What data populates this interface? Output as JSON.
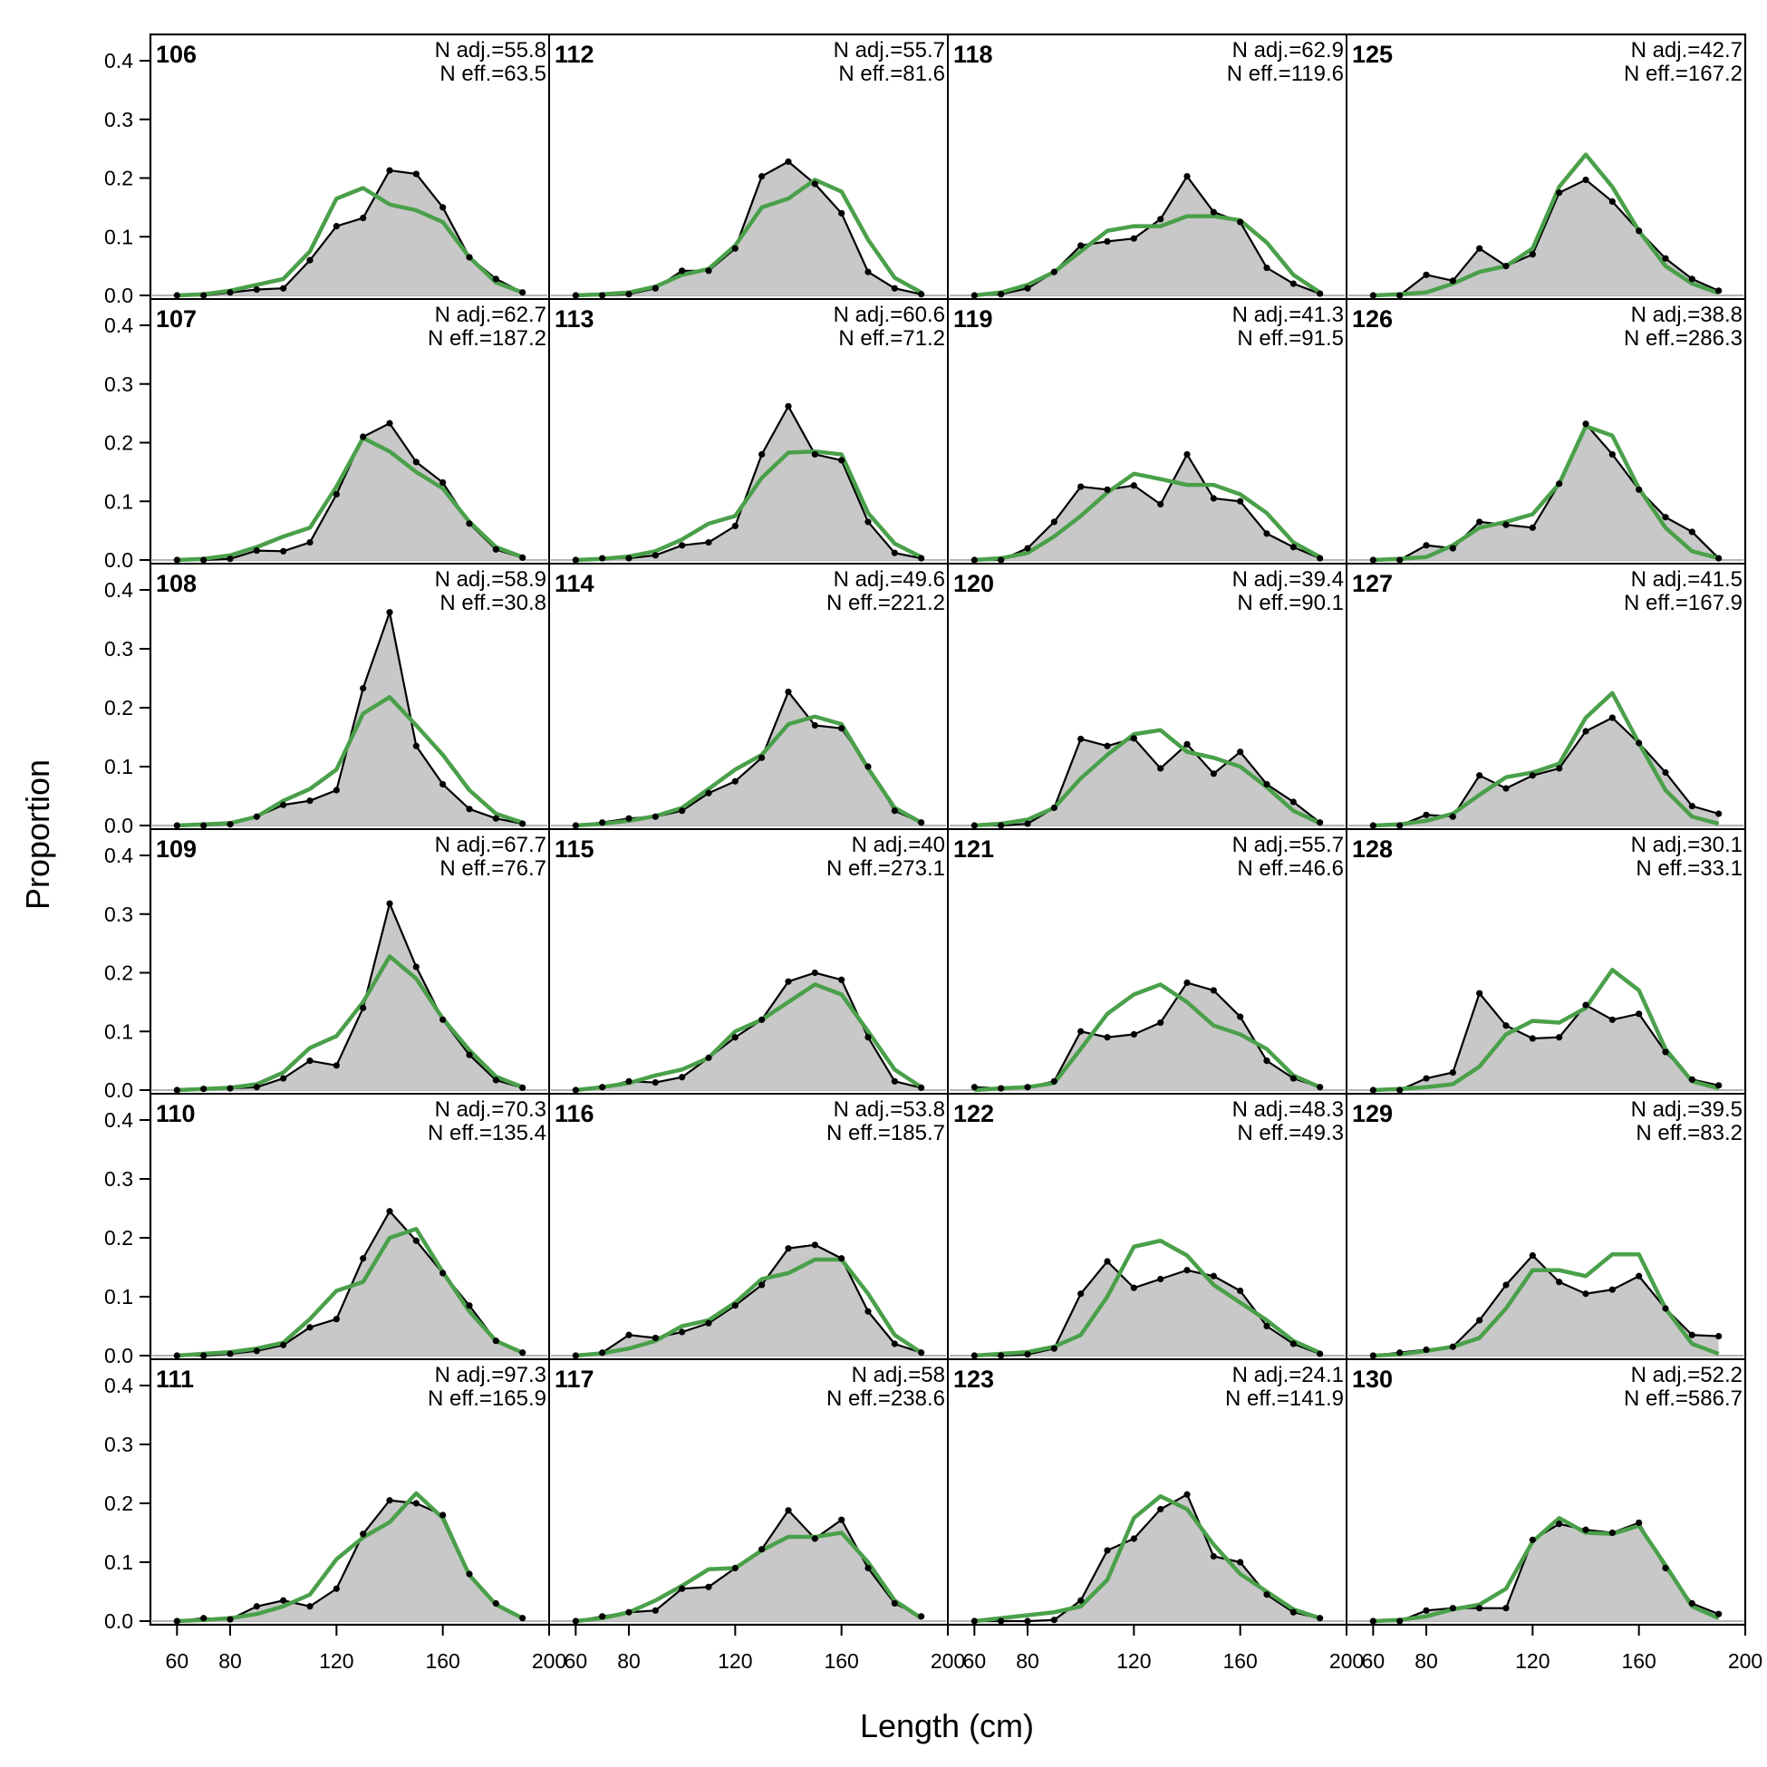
{
  "chart_data": {
    "type": "line",
    "xlabel": "Length (cm)",
    "ylabel": "Proportion",
    "xlim": [
      50,
      200
    ],
    "ylim": [
      0,
      0.4
    ],
    "x_ticks": [
      60,
      80,
      120,
      160,
      200
    ],
    "y_ticks": [
      0.0,
      0.1,
      0.2,
      0.3,
      0.4
    ],
    "y_tick_labels": [
      "0.0",
      "0.1",
      "0.2",
      "0.3",
      "0.4"
    ],
    "x_tick_labels": [
      "60",
      "80",
      "120",
      "160",
      "200"
    ],
    "x": [
      60,
      70,
      80,
      90,
      100,
      110,
      120,
      130,
      140,
      150,
      160,
      170,
      180,
      190
    ],
    "colors": {
      "observed_fill": "#c8c8c8",
      "observed_line": "#000000",
      "expected_line": "#4aa04a",
      "zero_line": "#b4b4b4"
    },
    "grid": false,
    "panels": [
      {
        "id": "106",
        "n_adj": "N adj.=55.8",
        "n_eff": "N eff.=63.5",
        "observed": [
          0,
          0,
          0.005,
          0.01,
          0.012,
          0.06,
          0.118,
          0.132,
          0.213,
          0.207,
          0.15,
          0.065,
          0.028,
          0.005
        ],
        "expected": [
          0,
          0.002,
          0.008,
          0.018,
          0.028,
          0.075,
          0.165,
          0.183,
          0.155,
          0.145,
          0.125,
          0.065,
          0.022,
          0.005
        ]
      },
      {
        "id": "107",
        "n_adj": "N adj.=62.7",
        "n_eff": "N eff.=187.2",
        "observed": [
          0,
          0,
          0.002,
          0.016,
          0.015,
          0.03,
          0.112,
          0.21,
          0.233,
          0.167,
          0.132,
          0.062,
          0.018,
          0.004
        ],
        "expected": [
          0,
          0.002,
          0.008,
          0.022,
          0.04,
          0.055,
          0.125,
          0.208,
          0.185,
          0.15,
          0.122,
          0.065,
          0.022,
          0.005
        ]
      },
      {
        "id": "108",
        "n_adj": "N adj.=58.9",
        "n_eff": "N eff.=30.8",
        "observed": [
          0,
          0,
          0.002,
          0.015,
          0.035,
          0.042,
          0.06,
          0.233,
          0.362,
          0.135,
          0.07,
          0.028,
          0.012,
          0.003
        ],
        "expected": [
          0,
          0.002,
          0.004,
          0.015,
          0.042,
          0.062,
          0.095,
          0.19,
          0.218,
          0.17,
          0.12,
          0.06,
          0.02,
          0.005
        ]
      },
      {
        "id": "109",
        "n_adj": "N adj.=67.7",
        "n_eff": "N eff.=76.7",
        "observed": [
          0,
          0.002,
          0.003,
          0.005,
          0.02,
          0.05,
          0.042,
          0.14,
          0.318,
          0.21,
          0.12,
          0.06,
          0.017,
          0.004
        ],
        "expected": [
          0,
          0.002,
          0.004,
          0.01,
          0.03,
          0.072,
          0.092,
          0.15,
          0.228,
          0.19,
          0.122,
          0.068,
          0.023,
          0.005
        ]
      },
      {
        "id": "110",
        "n_adj": "N adj.=70.3",
        "n_eff": "N eff.=135.4",
        "observed": [
          0,
          0,
          0.003,
          0.008,
          0.018,
          0.048,
          0.062,
          0.165,
          0.245,
          0.195,
          0.14,
          0.085,
          0.025,
          0.005
        ],
        "expected": [
          0,
          0.003,
          0.006,
          0.012,
          0.022,
          0.062,
          0.11,
          0.125,
          0.2,
          0.215,
          0.142,
          0.075,
          0.025,
          0.005
        ]
      },
      {
        "id": "111",
        "n_adj": "N adj.=97.3",
        "n_eff": "N eff.=165.9",
        "observed": [
          0,
          0.005,
          0.003,
          0.025,
          0.035,
          0.025,
          0.055,
          0.148,
          0.205,
          0.2,
          0.18,
          0.08,
          0.03,
          0.005
        ],
        "expected": [
          0,
          0.002,
          0.005,
          0.012,
          0.025,
          0.045,
          0.105,
          0.142,
          0.168,
          0.217,
          0.175,
          0.078,
          0.028,
          0.005
        ]
      },
      {
        "id": "112",
        "n_adj": "N adj.=55.7",
        "n_eff": "N eff.=81.6",
        "observed": [
          0,
          0,
          0.002,
          0.012,
          0.042,
          0.042,
          0.08,
          0.203,
          0.228,
          0.19,
          0.14,
          0.04,
          0.012,
          0.002
        ],
        "expected": [
          0,
          0.002,
          0.005,
          0.015,
          0.035,
          0.045,
          0.085,
          0.15,
          0.165,
          0.197,
          0.177,
          0.095,
          0.03,
          0.005
        ]
      },
      {
        "id": "113",
        "n_adj": "N adj.=60.6",
        "n_eff": "N eff.=71.2",
        "observed": [
          0,
          0.003,
          0.003,
          0.008,
          0.025,
          0.03,
          0.058,
          0.18,
          0.262,
          0.18,
          0.17,
          0.065,
          0.012,
          0.003
        ],
        "expected": [
          0,
          0.002,
          0.006,
          0.015,
          0.035,
          0.062,
          0.075,
          0.14,
          0.183,
          0.185,
          0.18,
          0.08,
          0.028,
          0.005
        ]
      },
      {
        "id": "114",
        "n_adj": "N adj.=49.6",
        "n_eff": "N eff.=221.2",
        "observed": [
          0,
          0.005,
          0.012,
          0.015,
          0.025,
          0.055,
          0.075,
          0.115,
          0.227,
          0.17,
          0.165,
          0.1,
          0.025,
          0.005
        ],
        "expected": [
          0,
          0.003,
          0.008,
          0.016,
          0.03,
          0.062,
          0.095,
          0.12,
          0.172,
          0.185,
          0.172,
          0.097,
          0.03,
          0.005
        ]
      },
      {
        "id": "115",
        "n_adj": "N adj.=40",
        "n_eff": "N eff.=273.1",
        "observed": [
          0,
          0.005,
          0.015,
          0.013,
          0.022,
          0.055,
          0.09,
          0.12,
          0.185,
          0.2,
          0.188,
          0.09,
          0.015,
          0.004
        ],
        "expected": [
          0,
          0.005,
          0.012,
          0.025,
          0.035,
          0.055,
          0.1,
          0.12,
          0.15,
          0.18,
          0.163,
          0.1,
          0.035,
          0.005
        ]
      },
      {
        "id": "116",
        "n_adj": "N adj.=53.8",
        "n_eff": "N eff.=185.7",
        "observed": [
          0,
          0.005,
          0.035,
          0.03,
          0.04,
          0.055,
          0.085,
          0.12,
          0.182,
          0.188,
          0.165,
          0.075,
          0.02,
          0.005
        ],
        "expected": [
          0,
          0.004,
          0.012,
          0.025,
          0.05,
          0.06,
          0.09,
          0.13,
          0.14,
          0.163,
          0.163,
          0.105,
          0.035,
          0.005
        ]
      },
      {
        "id": "117",
        "n_adj": "N adj.=58",
        "n_eff": "N eff.=238.6",
        "observed": [
          0,
          0.008,
          0.015,
          0.018,
          0.055,
          0.058,
          0.09,
          0.122,
          0.188,
          0.14,
          0.172,
          0.09,
          0.03,
          0.008
        ],
        "expected": [
          0,
          0.005,
          0.015,
          0.035,
          0.06,
          0.088,
          0.09,
          0.12,
          0.143,
          0.143,
          0.15,
          0.1,
          0.035,
          0.005
        ]
      },
      {
        "id": "118",
        "n_adj": "N adj.=62.9",
        "n_eff": "N eff.=119.6",
        "observed": [
          0,
          0.002,
          0.012,
          0.04,
          0.085,
          0.092,
          0.097,
          0.13,
          0.203,
          0.142,
          0.125,
          0.047,
          0.02,
          0.003
        ],
        "expected": [
          0,
          0.005,
          0.018,
          0.04,
          0.075,
          0.11,
          0.118,
          0.118,
          0.135,
          0.135,
          0.128,
          0.09,
          0.035,
          0.005
        ]
      },
      {
        "id": "119",
        "n_adj": "N adj.=41.3",
        "n_eff": "N eff.=91.5",
        "observed": [
          0,
          0,
          0.02,
          0.065,
          0.125,
          0.12,
          0.127,
          0.095,
          0.18,
          0.105,
          0.1,
          0.045,
          0.022,
          0.003
        ],
        "expected": [
          0,
          0.003,
          0.012,
          0.04,
          0.075,
          0.115,
          0.147,
          0.138,
          0.128,
          0.128,
          0.112,
          0.08,
          0.03,
          0.005
        ]
      },
      {
        "id": "120",
        "n_adj": "N adj.=39.4",
        "n_eff": "N eff.=90.1",
        "observed": [
          0,
          0,
          0.003,
          0.03,
          0.147,
          0.135,
          0.148,
          0.097,
          0.138,
          0.088,
          0.125,
          0.07,
          0.04,
          0.005
        ],
        "expected": [
          0,
          0.003,
          0.01,
          0.03,
          0.08,
          0.12,
          0.155,
          0.162,
          0.125,
          0.115,
          0.1,
          0.065,
          0.025,
          0.004
        ]
      },
      {
        "id": "121",
        "n_adj": "N adj.=55.7",
        "n_eff": "N eff.=46.6",
        "observed": [
          0.005,
          0.003,
          0.005,
          0.015,
          0.1,
          0.09,
          0.095,
          0.115,
          0.183,
          0.17,
          0.125,
          0.05,
          0.02,
          0.005
        ],
        "expected": [
          0,
          0.003,
          0.005,
          0.012,
          0.07,
          0.13,
          0.163,
          0.18,
          0.15,
          0.11,
          0.095,
          0.07,
          0.025,
          0.005
        ]
      },
      {
        "id": "122",
        "n_adj": "N adj.=48.3",
        "n_eff": "N eff.=49.3",
        "observed": [
          0,
          0,
          0.002,
          0.012,
          0.105,
          0.16,
          0.115,
          0.13,
          0.145,
          0.135,
          0.11,
          0.05,
          0.02,
          0.003
        ],
        "expected": [
          0,
          0.003,
          0.006,
          0.015,
          0.035,
          0.1,
          0.185,
          0.195,
          0.17,
          0.12,
          0.09,
          0.06,
          0.025,
          0.005
        ]
      },
      {
        "id": "123",
        "n_adj": "N adj.=24.1",
        "n_eff": "N eff.=141.9",
        "observed": [
          0,
          0,
          0,
          0.002,
          0.035,
          0.12,
          0.14,
          0.19,
          0.215,
          0.11,
          0.1,
          0.045,
          0.015,
          0.005
        ],
        "expected": [
          0,
          0.005,
          0.01,
          0.015,
          0.025,
          0.07,
          0.175,
          0.212,
          0.19,
          0.13,
          0.08,
          0.05,
          0.02,
          0.005
        ]
      },
      {
        "id": "125",
        "n_adj": "N adj.=42.7",
        "n_eff": "N eff.=167.2",
        "observed": [
          0,
          0,
          0.035,
          0.025,
          0.08,
          0.05,
          0.07,
          0.175,
          0.197,
          0.16,
          0.11,
          0.063,
          0.028,
          0.008
        ],
        "expected": [
          0,
          0.002,
          0.005,
          0.02,
          0.04,
          0.05,
          0.08,
          0.185,
          0.24,
          0.185,
          0.11,
          0.05,
          0.02,
          0.004
        ]
      },
      {
        "id": "126",
        "n_adj": "N adj.=38.8",
        "n_eff": "N eff.=286.3",
        "observed": [
          0,
          0,
          0.025,
          0.02,
          0.065,
          0.06,
          0.055,
          0.13,
          0.232,
          0.18,
          0.12,
          0.073,
          0.048,
          0.003
        ],
        "expected": [
          0,
          0.002,
          0.005,
          0.025,
          0.055,
          0.065,
          0.078,
          0.13,
          0.228,
          0.212,
          0.122,
          0.055,
          0.015,
          0.003
        ]
      },
      {
        "id": "127",
        "n_adj": "N adj.=41.5",
        "n_eff": "N eff.=167.9",
        "observed": [
          0,
          0,
          0.018,
          0.015,
          0.085,
          0.063,
          0.085,
          0.097,
          0.16,
          0.183,
          0.14,
          0.09,
          0.033,
          0.02
        ],
        "expected": [
          0,
          0.002,
          0.008,
          0.02,
          0.052,
          0.082,
          0.09,
          0.105,
          0.183,
          0.225,
          0.14,
          0.06,
          0.015,
          0.003
        ]
      },
      {
        "id": "128",
        "n_adj": "N adj.=30.1",
        "n_eff": "N eff.=33.1",
        "observed": [
          0,
          0,
          0.02,
          0.03,
          0.165,
          0.11,
          0.088,
          0.09,
          0.145,
          0.12,
          0.13,
          0.065,
          0.018,
          0.008
        ],
        "expected": [
          0,
          0.002,
          0.005,
          0.01,
          0.04,
          0.095,
          0.118,
          0.115,
          0.14,
          0.205,
          0.17,
          0.07,
          0.015,
          0.003
        ]
      },
      {
        "id": "129",
        "n_adj": "N adj.=39.5",
        "n_eff": "N eff.=83.2",
        "observed": [
          0,
          0.005,
          0.01,
          0.015,
          0.06,
          0.12,
          0.17,
          0.125,
          0.105,
          0.112,
          0.135,
          0.08,
          0.035,
          0.033
        ],
        "expected": [
          0,
          0.002,
          0.008,
          0.015,
          0.03,
          0.08,
          0.145,
          0.145,
          0.135,
          0.172,
          0.172,
          0.08,
          0.02,
          0.003
        ]
      },
      {
        "id": "130",
        "n_adj": "N adj.=52.2",
        "n_eff": "N eff.=586.7",
        "observed": [
          0,
          0,
          0.018,
          0.022,
          0.022,
          0.022,
          0.138,
          0.165,
          0.155,
          0.15,
          0.167,
          0.09,
          0.03,
          0.012
        ],
        "expected": [
          0,
          0.002,
          0.008,
          0.02,
          0.028,
          0.055,
          0.135,
          0.175,
          0.15,
          0.148,
          0.162,
          0.095,
          0.025,
          0.005
        ]
      }
    ]
  }
}
